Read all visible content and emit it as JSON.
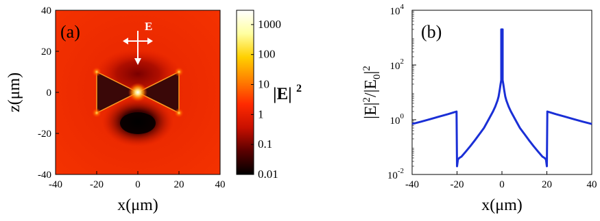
{
  "chart_data": [
    {
      "panel_label": "(a)",
      "type": "heatmap",
      "xlabel": "x(μm)",
      "ylabel": "z(μm)",
      "xlim": [
        -40,
        40
      ],
      "ylim": [
        -40,
        40
      ],
      "xticks": [
        -40,
        -20,
        0,
        20,
        40
      ],
      "yticks": [
        -40,
        -20,
        0,
        20,
        40
      ],
      "quantity": "|E|²",
      "colorbar": {
        "label": "|E|",
        "label_exponent": "2",
        "scale": "log",
        "range": [
          0.01,
          3000
        ],
        "ticks": [
          {
            "value": 1000,
            "label": "1000"
          },
          {
            "value": 100,
            "label": "100"
          },
          {
            "value": 10,
            "label": "10"
          },
          {
            "value": 1,
            "label": "1"
          },
          {
            "value": 0.1,
            "label": "0.1"
          },
          {
            "value": 0.01,
            "label": "0.01"
          }
        ],
        "colormap": [
          "#000000",
          "#5a0000",
          "#c81000",
          "#ff2a00",
          "#ff8000",
          "#ffd000",
          "#ffffa0",
          "#ffffff"
        ]
      },
      "structure": {
        "shape": "bowtie",
        "left_triangle_base_x": -20,
        "right_triangle_base_x": 20,
        "base_half_height": 10,
        "gap_at": [
          0,
          0
        ]
      },
      "annotation": {
        "text": "E",
        "meaning": "incident polarization (along x), propagation (along -z)"
      }
    },
    {
      "panel_label": "(b)",
      "type": "line",
      "xlabel": "x(μm)",
      "ylabel_parts": [
        "|E|",
        "2",
        "/|E",
        "0",
        "|",
        "2"
      ],
      "xlim": [
        -40,
        40
      ],
      "ylim": [
        0.01,
        10000
      ],
      "yscale": "log",
      "xticks": [
        -40,
        -20,
        0,
        20,
        40
      ],
      "yticks": [
        {
          "value": 0.01,
          "base": "10",
          "exp": "-2"
        },
        {
          "value": 1,
          "base": "10",
          "exp": "0"
        },
        {
          "value": 100,
          "base": "10",
          "exp": "2"
        },
        {
          "value": 10000,
          "base": "10",
          "exp": "4"
        }
      ],
      "line_color": "#1a2fd6",
      "series": [
        {
          "x": [
            -40,
            -36,
            -32,
            -28,
            -24,
            -21,
            -20.2,
            -20,
            -19.6,
            -19,
            -18,
            -16,
            -14,
            -12,
            -10,
            -8,
            -6,
            -4,
            -3,
            -2,
            -1.5,
            -1,
            -0.6,
            -0.3,
            -0.3,
            0.3,
            0.3,
            0.6,
            1,
            1.5,
            2,
            3,
            4,
            6,
            8,
            10,
            12,
            14,
            16,
            18,
            19,
            19.6,
            20,
            20.2,
            21,
            24,
            28,
            32,
            36,
            40
          ],
          "y": [
            0.7,
            0.85,
            1.05,
            1.3,
            1.6,
            1.9,
            2.0,
            0.02,
            0.035,
            0.04,
            0.045,
            0.07,
            0.11,
            0.18,
            0.3,
            0.5,
            1.0,
            2.0,
            3.0,
            5.0,
            7.0,
            12,
            20,
            28,
            2000,
            2000,
            28,
            20,
            12,
            7.0,
            5.0,
            3.0,
            2.0,
            1.0,
            0.5,
            0.3,
            0.18,
            0.11,
            0.07,
            0.045,
            0.04,
            0.035,
            0.02,
            2.0,
            1.9,
            1.6,
            1.3,
            1.05,
            0.85,
            0.7
          ]
        }
      ]
    }
  ]
}
